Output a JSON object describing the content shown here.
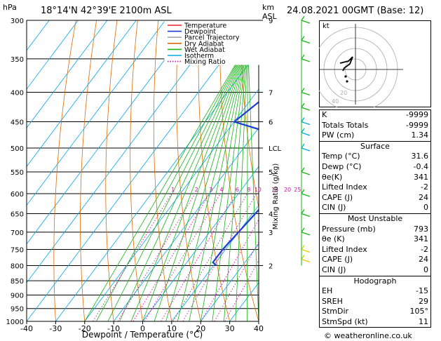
{
  "header": {
    "location": "18°14'N  42°39'E  2100m  ASL",
    "datetime": "24.08.2021  00GMT  (Base: 12)",
    "pressure_unit": "hPa",
    "height_unit_line1": "km",
    "height_unit_line2": "ASL"
  },
  "footer": {
    "copyright": "© weatheronline.co.uk"
  },
  "chart_data": {
    "type": "line",
    "xlabel": "Dewpoint / Temperature (°C)",
    "ylabel_right": "Mixing Ratio (g/kg)",
    "x_ticks": [
      -40,
      -30,
      -20,
      -10,
      0,
      10,
      20,
      30,
      40
    ],
    "xlim": [
      -40,
      40
    ],
    "pressure_levels": [
      300,
      350,
      400,
      450,
      500,
      550,
      600,
      650,
      700,
      750,
      800,
      850,
      900,
      950,
      1000
    ],
    "ylim": [
      1000,
      300
    ],
    "y_scale": "log",
    "height_ticks": [
      {
        "p": 300,
        "label": "9"
      },
      {
        "p": 400,
        "label": "7"
      },
      {
        "p": 450,
        "label": "6"
      },
      {
        "p": 500,
        "label": "LCL"
      },
      {
        "p": 550,
        "label": "5"
      },
      {
        "p": 650,
        "label": "4"
      },
      {
        "p": 700,
        "label": "3"
      },
      {
        "p": 800,
        "label": "2"
      }
    ],
    "mixing_ratio_labels": [
      "1",
      "2",
      "3",
      "4",
      "6",
      "8",
      "10",
      "15",
      "20",
      "25"
    ],
    "mixing_ratio_values": [
      1,
      2,
      3,
      4,
      6,
      8,
      10,
      15,
      20,
      25
    ],
    "legend": {
      "position": "top-left",
      "entries": [
        {
          "name": "Temperature",
          "color": "#e8222b",
          "style": "solid"
        },
        {
          "name": "Dewpoint",
          "color": "#1f3dd6",
          "style": "solid"
        },
        {
          "name": "Parcel Trajectory",
          "color": "#a6a6a6",
          "style": "solid"
        },
        {
          "name": "Dry Adiabat",
          "color": "#e06a00",
          "style": "solid"
        },
        {
          "name": "Wet Adiabat",
          "color": "#18b418",
          "style": "solid"
        },
        {
          "name": "Isotherm",
          "color": "#00a8e8",
          "style": "solid"
        },
        {
          "name": "Mixing Ratio",
          "color": "#d10fa8",
          "style": "dotted"
        }
      ]
    },
    "series": [
      {
        "name": "Temperature",
        "color": "#e8222b",
        "points": [
          [
            -2,
            300
          ],
          [
            4,
            350
          ],
          [
            11,
            400
          ],
          [
            17,
            450
          ],
          [
            14,
            480
          ],
          [
            15,
            500
          ],
          [
            18,
            550
          ],
          [
            22,
            600
          ],
          [
            25,
            650
          ],
          [
            28,
            700
          ],
          [
            32,
            750
          ],
          [
            36,
            790
          ],
          [
            38,
            800
          ],
          [
            40,
            803
          ]
        ]
      },
      {
        "name": "Dewpoint",
        "color": "#1f3dd6",
        "points": [
          [
            -5,
            300
          ],
          [
            -1,
            320
          ],
          [
            -3,
            335
          ],
          [
            -10,
            350
          ],
          [
            -15,
            400
          ],
          [
            -20,
            450
          ],
          [
            -5,
            470
          ],
          [
            3,
            490
          ],
          [
            8,
            520
          ],
          [
            13,
            550
          ],
          [
            12,
            600
          ],
          [
            11,
            650
          ],
          [
            10,
            700
          ],
          [
            9,
            750
          ],
          [
            9,
            790
          ],
          [
            11,
            800
          ]
        ]
      },
      {
        "name": "Parcel Trajectory",
        "color": "#a6a6a6",
        "points": [
          [
            -8,
            300
          ],
          [
            2,
            350
          ],
          [
            9,
            400
          ],
          [
            15,
            450
          ],
          [
            17,
            500
          ],
          [
            22,
            550
          ],
          [
            26,
            600
          ],
          [
            29,
            650
          ],
          [
            33,
            700
          ],
          [
            37,
            750
          ],
          [
            39,
            780
          ]
        ]
      }
    ]
  },
  "hodograph": {
    "label": "kt",
    "ring_labels": [
      "20",
      "40"
    ]
  },
  "indices": {
    "rows": [
      {
        "label": "K",
        "value": "-9999"
      },
      {
        "label": "Totals Totals",
        "value": "-9999"
      },
      {
        "label": "PW (cm)",
        "value": "1.34"
      }
    ],
    "surface": {
      "title": "Surface",
      "rows": [
        {
          "label": "Temp (°C)",
          "value": "31.6"
        },
        {
          "label": "Dewp (°C)",
          "value": "-0.4"
        },
        {
          "label": "θe(K)",
          "value": "341"
        },
        {
          "label": "Lifted Index",
          "value": "-2"
        },
        {
          "label": "CAPE (J)",
          "value": "24"
        },
        {
          "label": "CIN (J)",
          "value": "0"
        }
      ]
    },
    "most_unstable": {
      "title": "Most Unstable",
      "rows": [
        {
          "label": "Pressure (mb)",
          "value": "793"
        },
        {
          "label": "θe (K)",
          "value": "341"
        },
        {
          "label": "Lifted Index",
          "value": "-2"
        },
        {
          "label": "CAPE (J)",
          "value": "24"
        },
        {
          "label": "CIN (J)",
          "value": "0"
        }
      ]
    },
    "hodograph_section": {
      "title": "Hodograph",
      "rows": [
        {
          "label": "EH",
          "value": "-15"
        },
        {
          "label": "SREH",
          "value": "29"
        },
        {
          "label": "StmDir",
          "value": "105°"
        },
        {
          "label": "StmSpd (kt)",
          "value": "11"
        }
      ]
    }
  }
}
